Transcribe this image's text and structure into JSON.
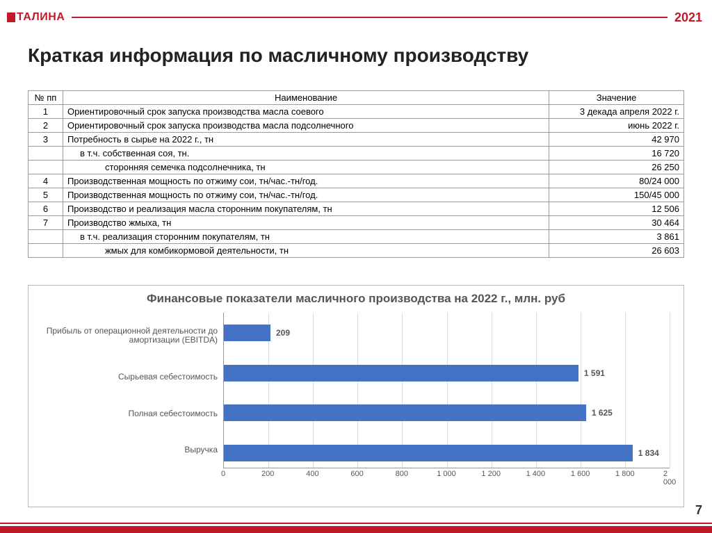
{
  "brand": {
    "name": "ТАЛИНА",
    "color": "#c1192a"
  },
  "year": "2021",
  "page_number": "7",
  "title": "Краткая информация по масличному производству",
  "table": {
    "headers": {
      "num": "№ пп",
      "name": "Наименование",
      "value": "Значение"
    },
    "rows": [
      {
        "num": "1",
        "name": "Ориентировочный срок запуска производства масла соевого",
        "value": "3 декада апреля 2022 г.",
        "indent": 0
      },
      {
        "num": "2",
        "name": "Ориентировочный срок запуска производства масла подсолнечного",
        "value": "июнь 2022 г.",
        "indent": 0
      },
      {
        "num": "3",
        "name": "Потребность в сырье на 2022 г., тн",
        "value": "42 970",
        "indent": 0
      },
      {
        "num": "",
        "name": "в т.ч. собственная соя, тн.",
        "value": "16 720",
        "indent": 1
      },
      {
        "num": "",
        "name": "сторонняя семечка подсолнечника, тн",
        "value": "26 250",
        "indent": 2
      },
      {
        "num": "4",
        "name": "Производственная мощность по отжиму сои, тн/час.-тн/год.",
        "value": "80/24 000",
        "indent": 0
      },
      {
        "num": "5",
        "name": "Производственная мощность по отжиму сои, тн/час.-тн/год.",
        "value": "150/45 000",
        "indent": 0
      },
      {
        "num": "6",
        "name": "Производство и реализация масла сторонним покупателям, тн",
        "value": "12 506",
        "indent": 0
      },
      {
        "num": "7",
        "name": "Производство жмыха, тн",
        "value": "30 464",
        "indent": 0
      },
      {
        "num": "",
        "name": "в т.ч. реализация сторонним покупателям, тн",
        "value": "3 861",
        "indent": 1
      },
      {
        "num": "",
        "name": "жмых для комбикормовой деятельности, тн",
        "value": "26 603",
        "indent": 2
      }
    ]
  },
  "chart": {
    "type": "bar-horizontal",
    "title": "Финансовые показатели масличного производства на 2022 г., млн. руб",
    "title_color": "#555555",
    "title_fontsize": 17,
    "bar_color": "#4472c4",
    "grid_color": "#dddddd",
    "axis_color": "#999999",
    "label_color": "#555555",
    "label_fontsize": 12,
    "value_fontsize": 12,
    "xmin": 0,
    "xmax": 2000,
    "xtick_step": 200,
    "xtick_labels": [
      "0",
      "200",
      "400",
      "600",
      "800",
      "1 000",
      "1 200",
      "1 400",
      "1 600",
      "1 800",
      "2 000"
    ],
    "series": [
      {
        "label": "Прибыль от операционной деятельности до амортизации  (EBITDA)",
        "value": 209,
        "display": "209"
      },
      {
        "label": "Сырьевая себестоимость",
        "value": 1591,
        "display": "1 591"
      },
      {
        "label": "Полная себестоимость",
        "value": 1625,
        "display": "1 625"
      },
      {
        "label": "Выручка",
        "value": 1834,
        "display": "1 834"
      }
    ]
  }
}
